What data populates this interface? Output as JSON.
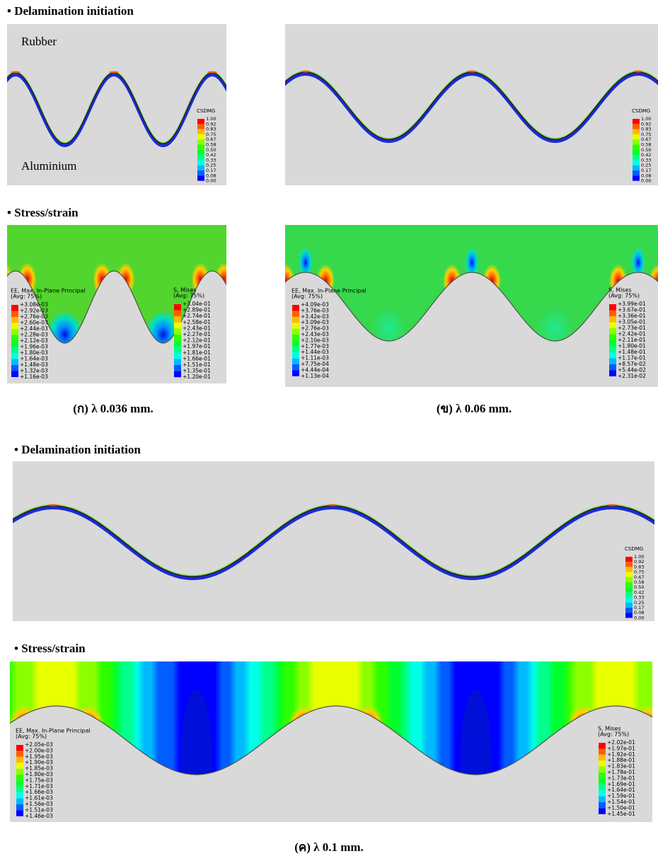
{
  "headings": [
    "• Delamination initiation",
    "• Stress/strain",
    "• Delamination initiation",
    "• Stress/strain"
  ],
  "panels": [
    {
      "delamination": {
        "material_labels": [
          "Rubber",
          "Aluminium"
        ],
        "legend": {
          "title": [
            "CSDMG"
          ],
          "labels": [
            "1.00",
            "0.92",
            "0.83",
            "0.75",
            "0.67",
            "0.58",
            "0.50",
            "0.42",
            "0.33",
            "0.25",
            "0.17",
            "0.08",
            "0.00"
          ]
        }
      },
      "stress": {
        "legends": [
          {
            "title": [
              "EE, Max. In-Plane Principal",
              "(Avg: 75%)"
            ],
            "labels": [
              "+3.08e-03",
              "+2.92e-03",
              "+2.76e-03",
              "+2.60e-03",
              "+2.44e-03",
              "+2.28e-03",
              "+2.12e-03",
              "+1.96e-03",
              "+1.80e-03",
              "+1.64e-03",
              "+1.48e-03",
              "+1.32e-03",
              "+1.16e-03"
            ]
          },
          {
            "title": [
              "S, Mises",
              "(Avg: 75%)"
            ],
            "labels": [
              "+3.04e-01",
              "+2.89e-01",
              "+2.74e-01",
              "+2.58e-01",
              "+2.43e-01",
              "+2.27e-01",
              "+2.12e-01",
              "+1.97e-01",
              "+1.81e-01",
              "+1.66e-01",
              "+1.51e-01",
              "+1.35e-01",
              "+1.20e-01"
            ]
          }
        ]
      },
      "caption": "(ก)  λ 0.036 mm."
    },
    {
      "delamination": {
        "legend": {
          "title": [
            "CSDMG"
          ],
          "labels": [
            "1.00",
            "0.92",
            "0.83",
            "0.75",
            "0.67",
            "0.58",
            "0.50",
            "0.42",
            "0.33",
            "0.25",
            "0.17",
            "0.08",
            "0.00"
          ]
        }
      },
      "stress": {
        "legends": [
          {
            "title": [
              "EE, Max. In-Plane Principal",
              "(Avg: 75%)"
            ],
            "labels": [
              "+4.09e-03",
              "+3.76e-03",
              "+3.42e-03",
              "+3.09e-03",
              "+2.76e-03",
              "+2.43e-03",
              "+2.10e-03",
              "+1.77e-03",
              "+1.44e-03",
              "+1.11e-03",
              "+7.75e-04",
              "+4.44e-04",
              "+1.13e-04"
            ]
          },
          {
            "title": [
              "S, Mises",
              "(Avg: 75%)"
            ],
            "labels": [
              "+3.99e-01",
              "+3.67e-01",
              "+3.36e-01",
              "+3.05e-01",
              "+2.73e-01",
              "+2.42e-01",
              "+2.11e-01",
              "+1.80e-01",
              "+1.48e-01",
              "+1.17e-01",
              "+8.57e-02",
              "+5.44e-02",
              "+2.31e-02"
            ]
          }
        ]
      },
      "caption": "(ข)  λ 0.06 mm."
    },
    {
      "delamination": {
        "legend": {
          "title": [
            "CSDMG"
          ],
          "labels": [
            "1.00",
            "0.92",
            "0.83",
            "0.75",
            "0.67",
            "0.58",
            "0.50",
            "0.42",
            "0.33",
            "0.25",
            "0.17",
            "0.08",
            "0.00"
          ]
        }
      },
      "stress": {
        "legends": [
          {
            "title": [
              "EE, Max. In-Plane Principal",
              "(Avg: 75%)"
            ],
            "labels": [
              "+2.05e-03",
              "+2.00e-03",
              "+1.95e-03",
              "+1.90e-03",
              "+1.85e-03",
              "+1.80e-03",
              "+1.75e-03",
              "+1.71e-03",
              "+1.66e-03",
              "+1.61e-03",
              "+1.56e-03",
              "+1.51e-03",
              "+1.46e-03"
            ]
          },
          {
            "title": [
              "S, Mises",
              "(Avg: 75%)"
            ],
            "labels": [
              "+2.02e-01",
              "+1.97e-01",
              "+1.92e-01",
              "+1.88e-01",
              "+1.83e-01",
              "+1.78e-01",
              "+1.73e-01",
              "+1.69e-01",
              "+1.64e-01",
              "+1.59e-01",
              "+1.54e-01",
              "+1.50e-01",
              "+1.45e-01"
            ]
          }
        ]
      },
      "caption": "(ค)  λ 0.1 mm."
    }
  ]
}
